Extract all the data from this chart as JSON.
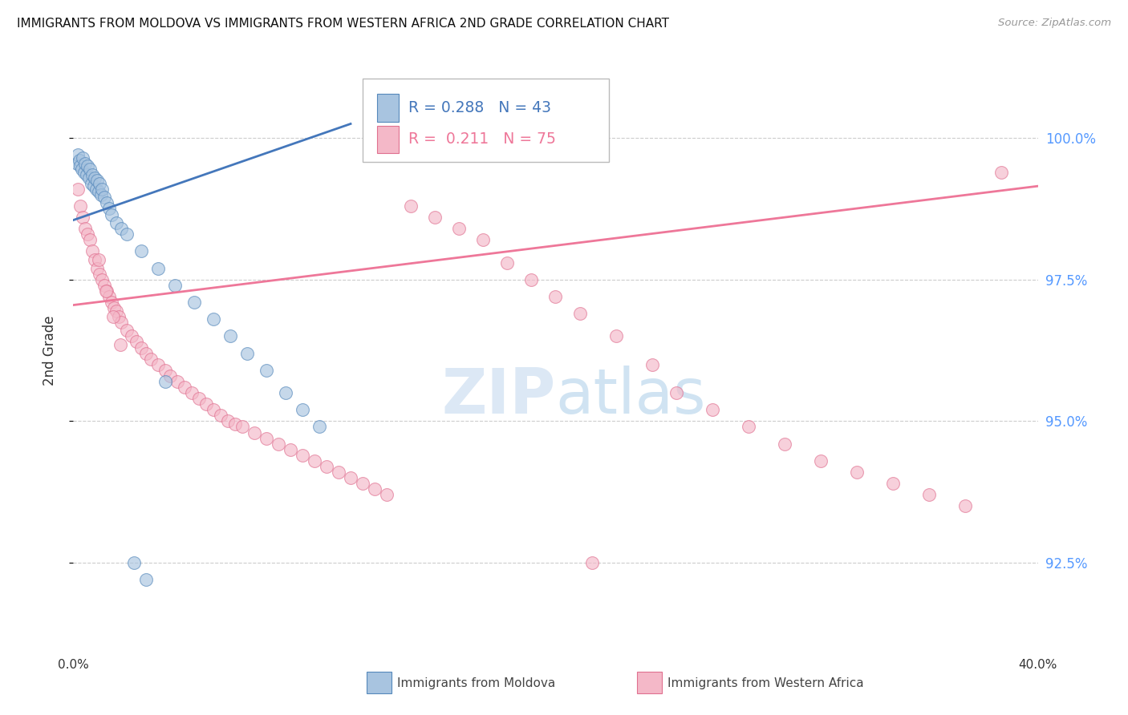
{
  "title": "IMMIGRANTS FROM MOLDOVA VS IMMIGRANTS FROM WESTERN AFRICA 2ND GRADE CORRELATION CHART",
  "source": "Source: ZipAtlas.com",
  "ylabel": "2nd Grade",
  "yticks": [
    92.5,
    95.0,
    97.5,
    100.0
  ],
  "xlim": [
    0.0,
    40.0
  ],
  "ylim": [
    91.2,
    101.3
  ],
  "blue_R": 0.288,
  "blue_N": 43,
  "pink_R": 0.211,
  "pink_N": 75,
  "blue_fill_color": "#A8C4E0",
  "blue_edge_color": "#5588BB",
  "pink_fill_color": "#F4B8C8",
  "pink_edge_color": "#E07090",
  "blue_line_color": "#4477BB",
  "pink_line_color": "#EE7799",
  "legend_label_blue": "Immigrants from Moldova",
  "legend_label_pink": "Immigrants from Western Africa",
  "blue_line_x": [
    0.0,
    11.5
  ],
  "blue_line_y": [
    98.55,
    100.25
  ],
  "pink_line_x": [
    0.0,
    40.0
  ],
  "pink_line_y": [
    97.05,
    99.15
  ],
  "blue_x": [
    0.15,
    0.2,
    0.25,
    0.3,
    0.35,
    0.4,
    0.45,
    0.5,
    0.55,
    0.6,
    0.65,
    0.7,
    0.75,
    0.8,
    0.85,
    0.9,
    0.95,
    1.0,
    1.05,
    1.1,
    1.15,
    1.2,
    1.3,
    1.4,
    1.5,
    1.6,
    1.8,
    2.0,
    2.2,
    2.8,
    3.5,
    4.2,
    5.0,
    5.8,
    6.5,
    7.2,
    8.0,
    8.8,
    9.5,
    10.2,
    2.5,
    3.0,
    3.8
  ],
  "blue_y": [
    99.55,
    99.7,
    99.6,
    99.5,
    99.45,
    99.65,
    99.4,
    99.55,
    99.35,
    99.5,
    99.3,
    99.45,
    99.2,
    99.35,
    99.15,
    99.3,
    99.1,
    99.25,
    99.05,
    99.2,
    99.0,
    99.1,
    98.95,
    98.85,
    98.75,
    98.65,
    98.5,
    98.4,
    98.3,
    98.0,
    97.7,
    97.4,
    97.1,
    96.8,
    96.5,
    96.2,
    95.9,
    95.5,
    95.2,
    94.9,
    92.5,
    92.2,
    95.7
  ],
  "pink_x": [
    0.2,
    0.3,
    0.4,
    0.5,
    0.6,
    0.7,
    0.8,
    0.9,
    1.0,
    1.1,
    1.2,
    1.3,
    1.4,
    1.5,
    1.6,
    1.7,
    1.8,
    1.9,
    2.0,
    2.2,
    2.4,
    2.6,
    2.8,
    3.0,
    3.2,
    3.5,
    3.8,
    4.0,
    4.3,
    4.6,
    4.9,
    5.2,
    5.5,
    5.8,
    6.1,
    6.4,
    6.7,
    7.0,
    7.5,
    8.0,
    8.5,
    9.0,
    9.5,
    10.0,
    10.5,
    11.0,
    11.5,
    12.0,
    12.5,
    13.0,
    14.0,
    15.0,
    16.0,
    17.0,
    18.0,
    19.0,
    20.0,
    21.0,
    22.5,
    24.0,
    25.0,
    26.5,
    28.0,
    29.5,
    31.0,
    32.5,
    34.0,
    35.5,
    37.0,
    38.5,
    1.05,
    1.35,
    1.65,
    1.95,
    21.5
  ],
  "pink_y": [
    99.1,
    98.8,
    98.6,
    98.4,
    98.3,
    98.2,
    98.0,
    97.85,
    97.7,
    97.6,
    97.5,
    97.4,
    97.3,
    97.2,
    97.1,
    97.0,
    96.95,
    96.85,
    96.75,
    96.6,
    96.5,
    96.4,
    96.3,
    96.2,
    96.1,
    96.0,
    95.9,
    95.8,
    95.7,
    95.6,
    95.5,
    95.4,
    95.3,
    95.2,
    95.1,
    95.0,
    94.95,
    94.9,
    94.8,
    94.7,
    94.6,
    94.5,
    94.4,
    94.3,
    94.2,
    94.1,
    94.0,
    93.9,
    93.8,
    93.7,
    98.8,
    98.6,
    98.4,
    98.2,
    97.8,
    97.5,
    97.2,
    96.9,
    96.5,
    96.0,
    95.5,
    95.2,
    94.9,
    94.6,
    94.3,
    94.1,
    93.9,
    93.7,
    93.5,
    99.4,
    97.85,
    97.3,
    96.85,
    96.35,
    92.5
  ]
}
